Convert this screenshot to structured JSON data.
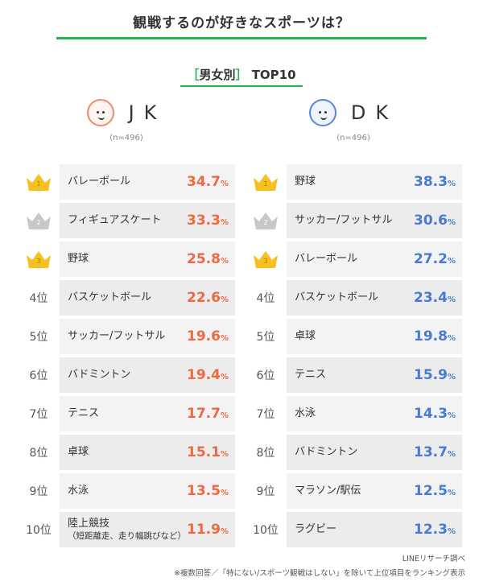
{
  "title": "観戦するのが好きなスポーツは？",
  "subtitle": {
    "open": "［",
    "text": "男女別",
    "close": "］",
    "top": "TOP10"
  },
  "colors": {
    "accent": "#22b14c",
    "jk": "#ec6a43",
    "dk": "#4a7ad0",
    "gold": "#f5c020",
    "silver": "#c8c8c8"
  },
  "columns": {
    "jk": {
      "label": "JK",
      "n": "(n=496)",
      "rows": [
        {
          "rank": "1",
          "name": "バレーボール",
          "value": "34.7"
        },
        {
          "rank": "2",
          "name": "フィギュアスケート",
          "value": "33.3"
        },
        {
          "rank": "3",
          "name": "野球",
          "value": "25.8"
        },
        {
          "rank": "4位",
          "name": "バスケットボール",
          "value": "22.6"
        },
        {
          "rank": "5位",
          "name": "サッカー/フットサル",
          "value": "19.6"
        },
        {
          "rank": "6位",
          "name": "バドミントン",
          "value": "19.4"
        },
        {
          "rank": "7位",
          "name": "テニス",
          "value": "17.7"
        },
        {
          "rank": "8位",
          "name": "卓球",
          "value": "15.1"
        },
        {
          "rank": "9位",
          "name": "水泳",
          "value": "13.5"
        },
        {
          "rank": "10位",
          "name": "陸上競技",
          "sub": "（短距離走、走り幅跳びなど）",
          "value": "11.9"
        }
      ]
    },
    "dk": {
      "label": "DK",
      "n": "(n=496)",
      "rows": [
        {
          "rank": "1",
          "name": "野球",
          "value": "38.3"
        },
        {
          "rank": "2",
          "name": "サッカー/フットサル",
          "value": "30.6"
        },
        {
          "rank": "3",
          "name": "バレーボール",
          "value": "27.2"
        },
        {
          "rank": "4位",
          "name": "バスケットボール",
          "value": "23.4"
        },
        {
          "rank": "5位",
          "name": "卓球",
          "value": "19.8"
        },
        {
          "rank": "6位",
          "name": "テニス",
          "value": "15.9"
        },
        {
          "rank": "7位",
          "name": "水泳",
          "value": "14.3"
        },
        {
          "rank": "8位",
          "name": "バドミントン",
          "value": "13.7"
        },
        {
          "rank": "9位",
          "name": "マラソン/駅伝",
          "value": "12.5"
        },
        {
          "rank": "10位",
          "name": "ラグビー",
          "value": "12.3"
        }
      ]
    }
  },
  "unit": "%",
  "footer": {
    "source": "LINEリサーチ調べ",
    "note": "※複数回答／「特にない/スポーツ観戦はしない」を除いて上位項目をランキング表示"
  }
}
